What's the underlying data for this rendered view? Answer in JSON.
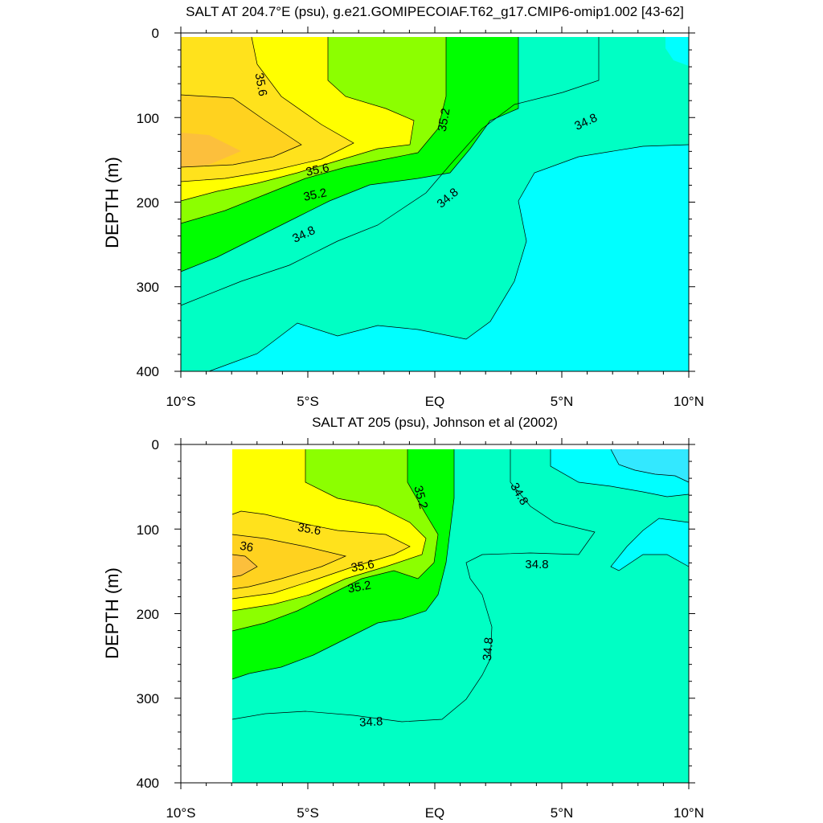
{
  "colors": {
    "lt_34_8": "#00ffff",
    "c34_8_35_2": "#00ffc4",
    "c35_2_35_4": "#00ff00",
    "c35_4_35_6": "#8cff00",
    "c35_6_35_8": "#ffff00",
    "c35_8_36": "#ffe21c",
    "gt_36": "#ffc03c",
    "deep_cyan": "#33e8ff"
  },
  "chart_data": [
    {
      "type": "heatmap",
      "title": "SALT AT 204.7°E (psu), g.e21.GOMIPECOIAF.T62_g17.CMIP6-omip1.002 [43-62]",
      "ylabel": "DEPTH (m)",
      "xlabel": "",
      "x_ticks": [
        "10°S",
        "5°S",
        "EQ",
        "5°N",
        "10°N"
      ],
      "x_tick_values": [
        -10,
        -5,
        0,
        5,
        10
      ],
      "xlim": [
        -10,
        10
      ],
      "y_ticks": [
        "0",
        "100",
        "200",
        "300",
        "400"
      ],
      "y_tick_values": [
        0,
        100,
        200,
        300,
        400
      ],
      "ylim": [
        0,
        400
      ],
      "y_reversed": true,
      "contour_labels": [
        "35.6",
        "35.2",
        "34.8",
        "35.6",
        "35.2",
        "34.8",
        "34.8"
      ],
      "data_extent_x": [
        -10,
        10
      ]
    },
    {
      "type": "heatmap",
      "title": "SALT AT 205 (psu), Johnson et al (2002)",
      "ylabel": "DEPTH (m)",
      "xlabel": "",
      "x_ticks": [
        "10°S",
        "5°S",
        "EQ",
        "5°N",
        "10°N"
      ],
      "x_tick_values": [
        -10,
        -5,
        0,
        5,
        10
      ],
      "xlim": [
        -10,
        10
      ],
      "y_ticks": [
        "0",
        "100",
        "200",
        "300",
        "400"
      ],
      "y_tick_values": [
        0,
        100,
        200,
        300,
        400
      ],
      "ylim": [
        0,
        400
      ],
      "y_reversed": true,
      "contour_labels": [
        "35.6",
        "36",
        "35.6",
        "35.2",
        "35.2",
        "34.8",
        "34.8",
        "34.8",
        "34.8"
      ],
      "data_extent_x": [
        -8,
        10
      ]
    }
  ]
}
